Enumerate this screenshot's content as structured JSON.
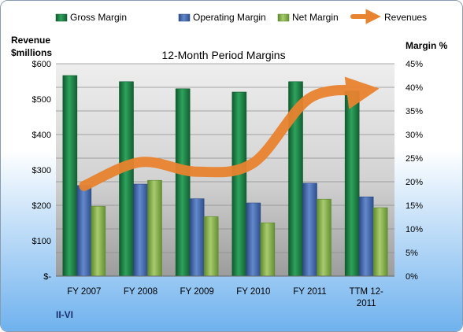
{
  "chart_data": {
    "type": "bar",
    "title": "12-Month Period Margins",
    "company": "II-VI",
    "categories": [
      "FY 2007",
      "FY 2008",
      "FY 2009",
      "FY 2010",
      "FY 2011",
      "TTM 12-2011"
    ],
    "category_lines": [
      [
        "FY 2007"
      ],
      [
        "FY 2008"
      ],
      [
        "FY 2009"
      ],
      [
        "FY 2010"
      ],
      [
        "FY 2011"
      ],
      [
        "TTM 12-",
        "2011"
      ]
    ],
    "series": [
      {
        "name": "Gross Margin",
        "axis": "right",
        "values": [
          42.5,
          41.2,
          39.7,
          39.0,
          41.2,
          39.2
        ],
        "color": "#1f8a4c"
      },
      {
        "name": "Operating Margin",
        "axis": "right",
        "values": [
          19.2,
          19.5,
          16.4,
          15.5,
          19.7,
          16.8
        ],
        "color": "#4a6fb5"
      },
      {
        "name": "Net Margin",
        "axis": "right",
        "values": [
          14.8,
          20.3,
          12.6,
          11.3,
          16.3,
          14.5
        ],
        "color": "#8db356"
      },
      {
        "name": "Revenues",
        "axis": "left",
        "type": "line",
        "values": [
          255,
          322,
          295,
          320,
          503,
          525
        ],
        "color": "#e8832f"
      }
    ],
    "y_left": {
      "label_lines": [
        "Revenue",
        "$millions"
      ],
      "min": 0,
      "max": 600,
      "ticks": [
        0,
        100,
        200,
        300,
        400,
        500,
        600
      ],
      "tick_labels": [
        "$-",
        "$100",
        "$200",
        "$300",
        "$400",
        "$500",
        "$600"
      ]
    },
    "y_right": {
      "label": "Margin %",
      "min": 0,
      "max": 45,
      "ticks": [
        0,
        5,
        10,
        15,
        20,
        25,
        30,
        35,
        40,
        45
      ],
      "tick_labels": [
        "0%",
        "5%",
        "10%",
        "15%",
        "20%",
        "25%",
        "30%",
        "35%",
        "40%",
        "45%"
      ]
    },
    "grid": true,
    "legend_position": "top"
  }
}
